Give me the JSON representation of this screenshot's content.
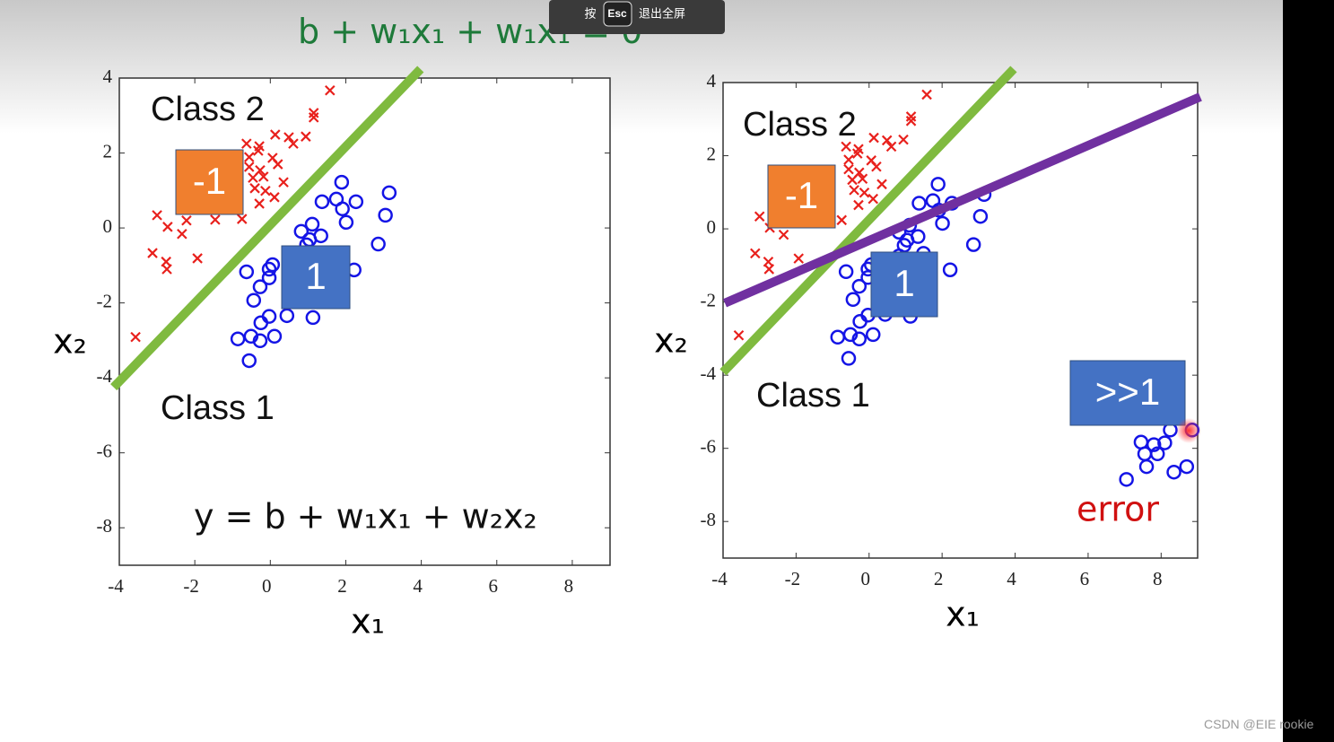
{
  "chart_data": [
    {
      "type": "scatter",
      "xlabel": "x₁",
      "ylabel": "x₂",
      "xlim": [
        -4,
        9
      ],
      "ylim": [
        -9,
        4
      ],
      "xticks": [
        -4,
        -2,
        0,
        2,
        4,
        6,
        8
      ],
      "yticks": [
        4,
        2,
        0,
        -2,
        -4,
        -6,
        -8
      ],
      "series": [
        {
          "name": "Class 2",
          "color": "#e8201c",
          "marker": "x",
          "x": [
            1.58,
            1.15,
            1.15,
            0.13,
            0.49,
            0.94,
            0.61,
            -0.63,
            -0.29,
            -0.32,
            -0.56,
            0.06,
            0.2,
            -0.56,
            -0.27,
            -0.46,
            -0.18,
            0.35,
            -0.41,
            -0.13,
            0.11,
            -0.29,
            -1.17,
            -3.0,
            -2.72,
            -2.22,
            -1.46,
            -0.75,
            -2.34,
            -3.12,
            -2.76,
            -2.74,
            -1.93,
            -3.57
          ],
          "y": [
            3.67,
            3.07,
            2.95,
            2.49,
            2.42,
            2.44,
            2.25,
            2.25,
            2.18,
            2.06,
            1.89,
            1.87,
            1.7,
            1.63,
            1.54,
            1.34,
            1.37,
            1.22,
            1.06,
            0.99,
            0.82,
            0.65,
            0.75,
            0.34,
            0.03,
            0.2,
            0.22,
            0.24,
            -0.16,
            -0.67,
            -0.9,
            -1.1,
            -0.81,
            -2.91
          ]
        },
        {
          "name": "Class 1",
          "color": "#1414e6",
          "marker": "o",
          "x": [
            1.89,
            3.15,
            1.37,
            1.75,
            2.27,
            1.91,
            3.05,
            2.01,
            1.11,
            0.82,
            1.34,
            1.04,
            0.96,
            2.86,
            0.82,
            1.49,
            2.22,
            -0.63,
            -0.03,
            0.06,
            -0.27,
            -0.03,
            -0.44,
            0.44,
            1.13,
            -0.03,
            -0.25,
            -0.86,
            -0.51,
            -0.27,
            0.11,
            -0.56
          ],
          "y": [
            1.22,
            0.94,
            0.7,
            0.77,
            0.7,
            0.51,
            0.34,
            0.15,
            0.1,
            -0.09,
            -0.21,
            -0.31,
            -0.45,
            -0.43,
            -0.74,
            -0.67,
            -1.12,
            -1.17,
            -1.1,
            -0.98,
            -1.57,
            -1.33,
            -1.93,
            -2.34,
            -2.39,
            -2.36,
            -2.53,
            -2.96,
            -2.89,
            -3.01,
            -2.89,
            -3.54
          ]
        }
      ],
      "lines": [
        {
          "color": "#7fba3f",
          "x": [
            -4.15,
            3.98
          ],
          "y": [
            -4.25,
            4.24
          ]
        }
      ],
      "boxes": [
        {
          "label": "-1",
          "color": "#f07f2e"
        },
        {
          "label": "1",
          "color": "#4472c4"
        }
      ],
      "annotations": [
        {
          "text": "y = b + w₁x₁ + w₂x₂",
          "color": "#111111"
        }
      ]
    },
    {
      "type": "scatter",
      "xlabel": "x₁",
      "ylabel": "x₂",
      "xlim": [
        -4,
        9
      ],
      "ylim": [
        -9,
        4
      ],
      "xticks": [
        -4,
        -2,
        0,
        2,
        4,
        6,
        8
      ],
      "yticks": [
        4,
        2,
        0,
        -2,
        -4,
        -6,
        -8
      ],
      "series": [
        {
          "name": "Class 2",
          "color": "#e8201c",
          "marker": "x",
          "x": [
            1.58,
            1.15,
            1.15,
            0.13,
            0.49,
            0.94,
            0.61,
            -0.63,
            -0.29,
            -0.32,
            -0.56,
            0.06,
            0.2,
            -0.56,
            -0.27,
            -0.46,
            -0.18,
            0.35,
            -0.41,
            -0.13,
            0.11,
            -0.29,
            -1.17,
            -3.0,
            -2.72,
            -2.22,
            -1.46,
            -0.75,
            -2.34,
            -3.12,
            -2.76,
            -2.74,
            -1.93,
            -3.57
          ],
          "y": [
            3.67,
            3.07,
            2.95,
            2.49,
            2.42,
            2.44,
            2.25,
            2.25,
            2.18,
            2.06,
            1.89,
            1.87,
            1.7,
            1.63,
            1.54,
            1.34,
            1.37,
            1.22,
            1.06,
            0.99,
            0.82,
            0.65,
            0.75,
            0.34,
            0.03,
            0.2,
            0.22,
            0.24,
            -0.16,
            -0.67,
            -0.9,
            -1.1,
            -0.81,
            -2.91
          ]
        },
        {
          "name": "Class 1",
          "color": "#1414e6",
          "marker": "o",
          "x": [
            1.89,
            3.15,
            1.37,
            1.75,
            2.27,
            1.91,
            3.05,
            2.01,
            1.11,
            0.82,
            1.34,
            1.04,
            0.96,
            2.86,
            0.82,
            1.49,
            2.22,
            -0.63,
            -0.03,
            0.06,
            -0.27,
            -0.03,
            -0.44,
            0.44,
            1.13,
            -0.03,
            -0.25,
            -0.86,
            -0.51,
            -0.27,
            0.11,
            -0.56,
            7.45,
            7.8,
            8.1,
            7.55,
            7.9,
            7.6,
            8.35,
            8.7,
            7.05,
            8.25,
            8.85
          ],
          "y": [
            1.22,
            0.94,
            0.7,
            0.77,
            0.7,
            0.51,
            0.34,
            0.15,
            0.1,
            -0.09,
            -0.21,
            -0.31,
            -0.45,
            -0.43,
            -0.74,
            -0.67,
            -1.12,
            -1.17,
            -1.1,
            -0.98,
            -1.57,
            -1.33,
            -1.93,
            -2.34,
            -2.39,
            -2.36,
            -2.53,
            -2.96,
            -2.89,
            -3.01,
            -2.89,
            -3.54,
            -5.83,
            -5.9,
            -5.85,
            -6.15,
            -6.15,
            -6.5,
            -6.65,
            -6.5,
            -6.85,
            -5.5,
            -5.5
          ]
        }
      ],
      "lines": [
        {
          "color": "#7fba3f",
          "x": [
            -4.0,
            3.96
          ],
          "y": [
            -3.92,
            4.37
          ]
        },
        {
          "color": "#7030a0",
          "x": [
            -3.95,
            9.07
          ],
          "y": [
            -2.03,
            3.61
          ]
        }
      ],
      "boxes": [
        {
          "label": "-1",
          "color": "#f07f2e"
        },
        {
          "label": "1",
          "color": "#4472c4"
        },
        {
          "label": ">>1",
          "color": "#4472c4"
        }
      ],
      "annotations": [
        {
          "text": "error",
          "color": "#d01010"
        }
      ]
    }
  ],
  "slide_title": "b + w₁x₁ + w₁x₁ = 0",
  "overlay": {
    "press": "按",
    "key": "Esc",
    "action": "退出全屏"
  },
  "watermark": "CSDN @EIE rookie"
}
